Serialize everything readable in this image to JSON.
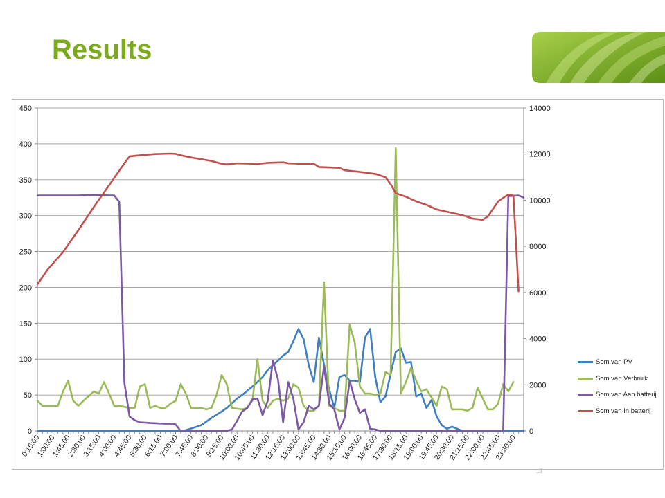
{
  "slide": {
    "title": "Results",
    "page_number": "17",
    "accent_color": "#7bab1c"
  },
  "chart_data": {
    "type": "line",
    "title": "",
    "xlabel": "",
    "ylabel": "",
    "y_left": {
      "min": 0,
      "max": 450,
      "step": 50
    },
    "y_right": {
      "min": 0,
      "max": 14000,
      "step": 2000
    },
    "x_tick_labels": [
      "0:15:00",
      "1:00:00",
      "1:45:00",
      "2:30:00",
      "3:15:00",
      "4:00:00",
      "4:45:00",
      "5:30:00",
      "6:15:00",
      "7:00:00",
      "7:45:00",
      "8:30:00",
      "9:15:00",
      "10:00:00",
      "10:45:00",
      "11:30:00",
      "12:15:00",
      "13:00:00",
      "13:45:00",
      "14:30:00",
      "15:15:00",
      "16:00:00",
      "16:45:00",
      "17:30:00",
      "18:15:00",
      "19:00:00",
      "19:45:00",
      "20:30:00",
      "21:15:00",
      "22:00:00",
      "22:45:00",
      "23:30:00"
    ],
    "x_start": "0:15:00",
    "x_step_minutes": 15,
    "grid": "horizontal",
    "legend_position": "right",
    "series": [
      {
        "name": "Som van PV",
        "axis": "left",
        "color": "#3f7fc1",
        "points": [
          [
            1,
            0
          ],
          [
            28,
            0
          ],
          [
            30,
            1
          ],
          [
            33,
            8
          ],
          [
            35,
            18
          ],
          [
            37,
            27
          ],
          [
            38,
            32
          ],
          [
            40,
            45
          ],
          [
            41,
            50
          ],
          [
            43,
            62
          ],
          [
            44,
            68
          ],
          [
            45,
            75
          ],
          [
            46,
            85
          ],
          [
            48,
            98
          ],
          [
            49,
            105
          ],
          [
            50,
            110
          ],
          [
            51,
            125
          ],
          [
            52,
            142
          ],
          [
            53,
            128
          ],
          [
            54,
            92
          ],
          [
            55,
            68
          ],
          [
            56,
            130
          ],
          [
            57,
            92
          ],
          [
            58,
            58
          ],
          [
            59,
            32
          ],
          [
            60,
            75
          ],
          [
            61,
            78
          ],
          [
            62,
            70
          ],
          [
            63,
            70
          ],
          [
            64,
            68
          ],
          [
            65,
            130
          ],
          [
            66,
            142
          ],
          [
            67,
            75
          ],
          [
            68,
            40
          ],
          [
            69,
            48
          ],
          [
            71,
            110
          ],
          [
            72,
            115
          ],
          [
            73,
            95
          ],
          [
            74,
            96
          ],
          [
            75,
            48
          ],
          [
            76,
            52
          ],
          [
            77,
            32
          ],
          [
            78,
            43
          ],
          [
            79,
            20
          ],
          [
            80,
            8
          ],
          [
            81,
            3
          ],
          [
            82,
            6
          ],
          [
            84,
            0
          ],
          [
            96,
            0
          ]
        ]
      },
      {
        "name": "Som van Verbruik",
        "axis": "left",
        "color": "#9bbb59",
        "points": [
          [
            1,
            42
          ],
          [
            2,
            35
          ],
          [
            3,
            35
          ],
          [
            5,
            35
          ],
          [
            6,
            55
          ],
          [
            7,
            70
          ],
          [
            8,
            42
          ],
          [
            9,
            35
          ],
          [
            10,
            42
          ],
          [
            12,
            55
          ],
          [
            13,
            52
          ],
          [
            14,
            68
          ],
          [
            15,
            52
          ],
          [
            16,
            35
          ],
          [
            17,
            35
          ],
          [
            19,
            32
          ],
          [
            20,
            32
          ],
          [
            21,
            62
          ],
          [
            22,
            65
          ],
          [
            23,
            32
          ],
          [
            24,
            35
          ],
          [
            25,
            32
          ],
          [
            26,
            32
          ],
          [
            27,
            38
          ],
          [
            28,
            42
          ],
          [
            29,
            65
          ],
          [
            30,
            52
          ],
          [
            31,
            32
          ],
          [
            33,
            32
          ],
          [
            34,
            30
          ],
          [
            35,
            32
          ],
          [
            36,
            50
          ],
          [
            37,
            78
          ],
          [
            38,
            65
          ],
          [
            39,
            32
          ],
          [
            41,
            30
          ],
          [
            42,
            32
          ],
          [
            43,
            42
          ],
          [
            44,
            100
          ],
          [
            45,
            42
          ],
          [
            46,
            32
          ],
          [
            47,
            42
          ],
          [
            48,
            45
          ],
          [
            49,
            42
          ],
          [
            50,
            45
          ],
          [
            51,
            65
          ],
          [
            52,
            60
          ],
          [
            53,
            35
          ],
          [
            54,
            28
          ],
          [
            55,
            28
          ],
          [
            56,
            35
          ],
          [
            57,
            207
          ],
          [
            58,
            35
          ],
          [
            59,
            32
          ],
          [
            60,
            28
          ],
          [
            61,
            28
          ],
          [
            62,
            148
          ],
          [
            63,
            123
          ],
          [
            64,
            62
          ],
          [
            65,
            52
          ],
          [
            66,
            52
          ],
          [
            67,
            50
          ],
          [
            68,
            52
          ],
          [
            69,
            82
          ],
          [
            70,
            78
          ],
          [
            71,
            394
          ],
          [
            72,
            52
          ],
          [
            73,
            68
          ],
          [
            74,
            88
          ],
          [
            75,
            70
          ],
          [
            76,
            55
          ],
          [
            77,
            58
          ],
          [
            79,
            35
          ],
          [
            80,
            62
          ],
          [
            81,
            58
          ],
          [
            82,
            30
          ],
          [
            83,
            30
          ],
          [
            84,
            30
          ],
          [
            85,
            28
          ],
          [
            86,
            32
          ],
          [
            87,
            60
          ],
          [
            88,
            45
          ],
          [
            89,
            30
          ],
          [
            90,
            30
          ],
          [
            91,
            38
          ],
          [
            92,
            65
          ],
          [
            93,
            55
          ],
          [
            94,
            68
          ]
        ]
      },
      {
        "name": "Som van Aan batterij",
        "axis": "left",
        "color": "#7b59a5",
        "points": [
          [
            1,
            328
          ],
          [
            3,
            328
          ],
          [
            5,
            328
          ],
          [
            7,
            328
          ],
          [
            9,
            328
          ],
          [
            12,
            329
          ],
          [
            15,
            328
          ],
          [
            16,
            328
          ],
          [
            17,
            319
          ],
          [
            18,
            67
          ],
          [
            19,
            20
          ],
          [
            20,
            15
          ],
          [
            21,
            12
          ],
          [
            23,
            11
          ],
          [
            26,
            10
          ],
          [
            27,
            10
          ],
          [
            28,
            9
          ],
          [
            29,
            0
          ],
          [
            38,
            0
          ],
          [
            39,
            2
          ],
          [
            40,
            14
          ],
          [
            41,
            27
          ],
          [
            42,
            32
          ],
          [
            43,
            44
          ],
          [
            44,
            45
          ],
          [
            45,
            22
          ],
          [
            46,
            42
          ],
          [
            47,
            98
          ],
          [
            48,
            72
          ],
          [
            49,
            12
          ],
          [
            50,
            68
          ],
          [
            51,
            45
          ],
          [
            52,
            2
          ],
          [
            53,
            12
          ],
          [
            54,
            35
          ],
          [
            55,
            30
          ],
          [
            56,
            35
          ],
          [
            57,
            90
          ],
          [
            58,
            38
          ],
          [
            59,
            30
          ],
          [
            60,
            2
          ],
          [
            61,
            18
          ],
          [
            62,
            70
          ],
          [
            63,
            44
          ],
          [
            64,
            25
          ],
          [
            65,
            30
          ],
          [
            66,
            3
          ],
          [
            67,
            2
          ],
          [
            68,
            0
          ],
          [
            92,
            0
          ],
          [
            93,
            327
          ],
          [
            95,
            328
          ],
          [
            96,
            325
          ]
        ]
      },
      {
        "name": "Som van In batterij",
        "axis": "right",
        "color": "#c0504d",
        "points": [
          [
            1,
            6350
          ],
          [
            3,
            7000
          ],
          [
            6,
            7750
          ],
          [
            9,
            8700
          ],
          [
            12,
            9700
          ],
          [
            15,
            10650
          ],
          [
            18,
            11600
          ],
          [
            19,
            11900
          ],
          [
            21,
            11950
          ],
          [
            24,
            12000
          ],
          [
            27,
            12020
          ],
          [
            28,
            12010
          ],
          [
            29,
            11950
          ],
          [
            31,
            11850
          ],
          [
            33,
            11780
          ],
          [
            35,
            11700
          ],
          [
            37,
            11580
          ],
          [
            38,
            11550
          ],
          [
            40,
            11600
          ],
          [
            43,
            11580
          ],
          [
            44,
            11570
          ],
          [
            46,
            11620
          ],
          [
            49,
            11640
          ],
          [
            50,
            11600
          ],
          [
            52,
            11580
          ],
          [
            55,
            11580
          ],
          [
            56,
            11440
          ],
          [
            58,
            11420
          ],
          [
            60,
            11400
          ],
          [
            61,
            11300
          ],
          [
            63,
            11250
          ],
          [
            65,
            11200
          ],
          [
            67,
            11140
          ],
          [
            69,
            11000
          ],
          [
            70,
            10700
          ],
          [
            71,
            10300
          ],
          [
            73,
            10150
          ],
          [
            75,
            9950
          ],
          [
            77,
            9800
          ],
          [
            79,
            9600
          ],
          [
            81,
            9500
          ],
          [
            83,
            9400
          ],
          [
            84,
            9350
          ],
          [
            85,
            9280
          ],
          [
            86,
            9200
          ],
          [
            88,
            9150
          ],
          [
            89,
            9300
          ],
          [
            90,
            9620
          ],
          [
            91,
            9950
          ],
          [
            93,
            10250
          ],
          [
            94,
            10200
          ],
          [
            95,
            6050
          ]
        ]
      }
    ]
  }
}
